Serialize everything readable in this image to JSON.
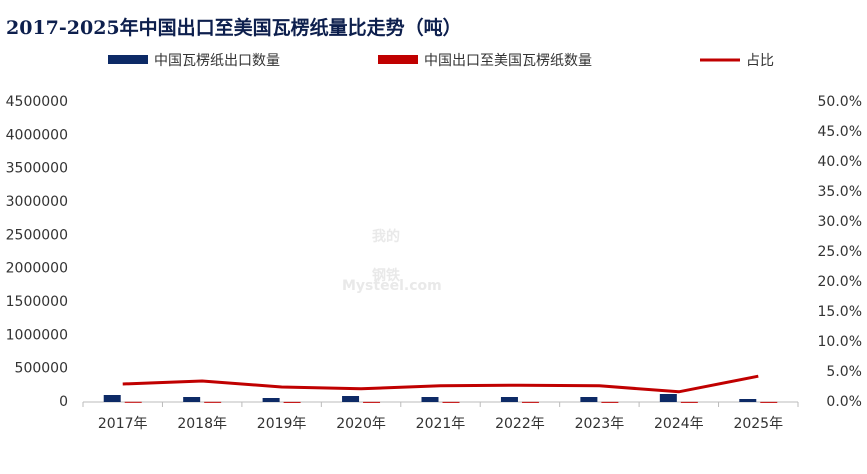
{
  "chart_data": {
    "type": "bar-line",
    "title": "2017-2025年中国出口至美国瓦楞纸量比走势（吨）",
    "watermark": [
      "我的",
      "钢铁",
      "Mysteel.com"
    ],
    "categories": [
      "2017年",
      "2018年",
      "2019年",
      "2020年",
      "2021年",
      "2022年",
      "2023年",
      "2024年",
      "2025年"
    ],
    "series": [
      {
        "name": "中国瓦楞纸出口数量",
        "color": "#0d2a66",
        "kind": "bar",
        "values": [
          105000,
          75000,
          60000,
          90000,
          75000,
          75000,
          75000,
          120000,
          45000
        ]
      },
      {
        "name": "中国出口至美国瓦楞纸数量",
        "color": "#c00000",
        "kind": "bar",
        "values": [
          3150,
          2600,
          1500,
          2000,
          2000,
          2100,
          2000,
          2000,
          1900
        ]
      },
      {
        "name": "占比",
        "color": "#c00000",
        "kind": "line",
        "axis": "y2",
        "values": [
          3.0,
          3.5,
          2.5,
          2.2,
          2.7,
          2.8,
          2.7,
          1.7,
          4.3
        ]
      }
    ],
    "ylim": [
      0,
      4500000
    ],
    "yticks": [
      0,
      500000,
      1000000,
      1500000,
      2000000,
      2500000,
      3000000,
      3500000,
      4000000,
      4500000
    ],
    "y2lim": [
      0,
      50
    ],
    "y2ticks": [
      {
        "value": 0,
        "label": "0.0%"
      },
      {
        "value": 5,
        "label": "5.0%"
      },
      {
        "value": 10,
        "label": "10.0%"
      },
      {
        "value": 15,
        "label": "15.0%"
      },
      {
        "value": 20,
        "label": "20.0%"
      },
      {
        "value": 25,
        "label": "25.0%"
      },
      {
        "value": 30,
        "label": "30.0%"
      },
      {
        "value": 35,
        "label": "35.0%"
      },
      {
        "value": 40,
        "label": "40.0%"
      },
      {
        "value": 45,
        "label": "45.0%"
      },
      {
        "value": 50,
        "label": "50.0%"
      }
    ],
    "grid": false
  }
}
